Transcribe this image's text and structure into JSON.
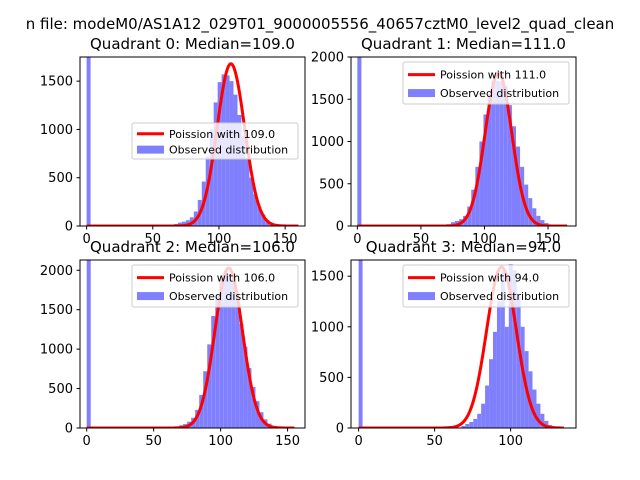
{
  "figure": {
    "suptitle": "n file: modeM0/AS1A12_029T01_9000005556_40657cztM0_level2_quad_clean"
  },
  "colors": {
    "poisson_line": "#ff0000",
    "observed_bars": "#8080ff",
    "axes_frame": "#000000",
    "background": "#ffffff"
  },
  "chart_data": [
    {
      "type": "bar",
      "title": "Quadrant 0: Median=109.0",
      "xlim": [
        -5,
        165
      ],
      "ylim": [
        0,
        1750
      ],
      "xticks": [
        0,
        50,
        100,
        150
      ],
      "yticks": [
        0,
        500,
        1000,
        1500
      ],
      "legend_position": "center-right",
      "series": [
        {
          "name": "Poission with 109.0",
          "kind": "line",
          "color": "#ff0000",
          "mean": 109.0,
          "peak": 1680,
          "sigma": 10.4,
          "x_range": [
            0,
            160
          ]
        },
        {
          "name": "Observed distribution",
          "kind": "histogram",
          "color": "#8080ff",
          "bin_width": 3,
          "x": [
            0,
            3,
            6,
            9,
            12,
            15,
            18,
            21,
            24,
            27,
            30,
            33,
            36,
            39,
            42,
            45,
            48,
            51,
            54,
            57,
            60,
            63,
            66,
            69,
            72,
            75,
            78,
            81,
            84,
            87,
            90,
            93,
            96,
            99,
            102,
            105,
            108,
            111,
            114,
            117,
            120,
            123,
            126,
            129,
            132,
            135,
            138,
            141,
            144,
            147,
            150,
            153,
            156
          ],
          "values": [
            1750,
            0,
            0,
            0,
            0,
            0,
            0,
            0,
            0,
            0,
            0,
            0,
            0,
            0,
            0,
            0,
            0,
            0,
            0,
            0,
            0,
            0,
            20,
            35,
            45,
            60,
            90,
            150,
            270,
            460,
            720,
            1000,
            1280,
            1490,
            1570,
            1560,
            1500,
            1360,
            1150,
            930,
            700,
            500,
            330,
            200,
            120,
            60,
            30,
            15,
            8,
            4,
            2,
            1,
            0
          ]
        }
      ]
    },
    {
      "type": "bar",
      "title": "Quadrant 1: Median=111.0",
      "xlim": [
        -5,
        172
      ],
      "ylim": [
        0,
        2000
      ],
      "xticks": [
        0,
        50,
        100,
        150
      ],
      "yticks": [
        0,
        500,
        1000,
        1500,
        2000
      ],
      "legend_position": "top-right",
      "series": [
        {
          "name": "Poission with 111.0",
          "kind": "line",
          "color": "#ff0000",
          "mean": 111.0,
          "peak": 1810,
          "sigma": 10.5,
          "x_range": [
            0,
            165
          ]
        },
        {
          "name": "Observed distribution",
          "kind": "histogram",
          "color": "#8080ff",
          "bin_width": 3.2,
          "x": [
            0,
            3.2,
            6.4,
            9.6,
            12.8,
            16,
            19.2,
            22.4,
            25.6,
            28.8,
            32,
            35.2,
            38.4,
            41.6,
            44.8,
            48,
            51.2,
            54.4,
            57.6,
            60.8,
            64,
            67.2,
            70.4,
            73.6,
            76.8,
            80,
            83.2,
            86.4,
            89.6,
            92.8,
            96,
            99.2,
            102.4,
            105.6,
            108.8,
            112,
            115.2,
            118.4,
            121.6,
            124.8,
            128,
            131.2,
            134.4,
            137.6,
            140.8,
            144,
            147.2,
            150.4,
            153.6,
            156.8,
            160
          ],
          "values": [
            2000,
            0,
            0,
            0,
            0,
            0,
            0,
            0,
            0,
            0,
            0,
            0,
            0,
            0,
            0,
            0,
            0,
            0,
            0,
            0,
            0,
            0,
            20,
            45,
            60,
            80,
            120,
            230,
            430,
            700,
            1000,
            1320,
            1560,
            1720,
            1720,
            1710,
            1660,
            1430,
            1180,
            940,
            700,
            490,
            330,
            210,
            120,
            70,
            35,
            15,
            7,
            3,
            1
          ]
        }
      ]
    },
    {
      "type": "bar",
      "title": "Quadrant 2: Median=106.0",
      "xlim": [
        -5,
        163
      ],
      "ylim": [
        0,
        2130
      ],
      "xticks": [
        0,
        50,
        100,
        150
      ],
      "yticks": [
        0,
        500,
        1000,
        1500,
        2000
      ],
      "legend_position": "top-right",
      "series": [
        {
          "name": "Poission with 106.0",
          "kind": "line",
          "color": "#ff0000",
          "mean": 106.0,
          "peak": 2030,
          "sigma": 10.3,
          "x_range": [
            0,
            155
          ]
        },
        {
          "name": "Observed distribution",
          "kind": "histogram",
          "color": "#8080ff",
          "bin_width": 3,
          "x": [
            0,
            3,
            6,
            9,
            12,
            15,
            18,
            21,
            24,
            27,
            30,
            33,
            36,
            39,
            42,
            45,
            48,
            51,
            54,
            57,
            60,
            63,
            66,
            69,
            72,
            75,
            78,
            81,
            84,
            87,
            90,
            93,
            96,
            99,
            102,
            105,
            108,
            111,
            114,
            117,
            120,
            123,
            126,
            129,
            132,
            135,
            138,
            141,
            144,
            147,
            150
          ],
          "values": [
            2130,
            0,
            0,
            0,
            0,
            0,
            0,
            0,
            0,
            0,
            0,
            0,
            0,
            0,
            0,
            0,
            0,
            0,
            0,
            0,
            0,
            0,
            20,
            35,
            50,
            80,
            130,
            230,
            420,
            720,
            1060,
            1420,
            1700,
            1900,
            1960,
            1950,
            1870,
            1650,
            1320,
            1030,
            760,
            520,
            340,
            200,
            110,
            55,
            25,
            10,
            4,
            2,
            1
          ]
        }
      ]
    },
    {
      "type": "bar",
      "title": "Quadrant 3: Median=94.0",
      "xlim": [
        -5,
        143
      ],
      "ylim": [
        0,
        1660
      ],
      "xticks": [
        0,
        50,
        100
      ],
      "yticks": [
        0,
        500,
        1000,
        1500
      ],
      "legend_position": "top-right",
      "series": [
        {
          "name": "Poission with 94.0",
          "kind": "line",
          "color": "#ff0000",
          "mean": 94.0,
          "peak": 1590,
          "sigma": 9.8,
          "x_range": [
            0,
            135
          ]
        },
        {
          "name": "Observed distribution",
          "kind": "histogram",
          "color": "#8080ff",
          "bin_width": 2.6,
          "x": [
            0,
            2.6,
            5.2,
            7.8,
            10.4,
            13,
            15.6,
            18.2,
            20.8,
            23.4,
            26,
            28.6,
            31.2,
            33.8,
            36.4,
            39,
            41.6,
            44.2,
            46.8,
            49.4,
            52,
            54.6,
            57.2,
            59.8,
            62.4,
            65,
            67.6,
            70.2,
            72.8,
            75.4,
            78,
            80.6,
            83.2,
            85.8,
            88.4,
            91,
            93.6,
            96.2,
            98.8,
            101.4,
            104,
            106.6,
            109.2,
            111.8,
            114.4,
            117,
            119.6,
            122.2,
            124.8,
            127.4,
            130
          ],
          "values": [
            1660,
            0,
            0,
            0,
            0,
            0,
            0,
            0,
            0,
            0,
            0,
            0,
            0,
            0,
            0,
            0,
            0,
            0,
            0,
            0,
            0,
            0,
            0,
            0,
            0,
            0,
            20,
            40,
            60,
            90,
            140,
            240,
            420,
            680,
            950,
            1250,
            1550,
            1000,
            1620,
            1560,
            1300,
            1000,
            760,
            560,
            380,
            240,
            140,
            70,
            30,
            12,
            4
          ]
        }
      ]
    }
  ]
}
